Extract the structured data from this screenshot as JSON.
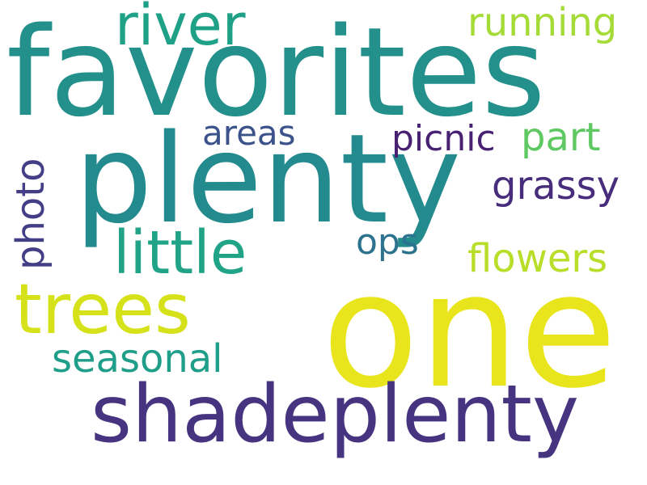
{
  "background": "#ffffff",
  "words": [
    {
      "id": "favorites",
      "text": "favorites",
      "color": "#23908c"
    },
    {
      "id": "plenty",
      "text": "plenty",
      "color": "#238a8d"
    },
    {
      "id": "one",
      "text": "one",
      "color": "#e9e51c"
    },
    {
      "id": "shadeplenty",
      "text": "shadeplenty",
      "color": "#463480"
    },
    {
      "id": "trees",
      "text": "trees",
      "color": "#d5e21a"
    },
    {
      "id": "little",
      "text": "little",
      "color": "#20a386"
    },
    {
      "id": "river",
      "text": "river",
      "color": "#1fa187"
    },
    {
      "id": "running",
      "text": "running",
      "color": "#a5db36"
    },
    {
      "id": "flowers",
      "text": "flowers",
      "color": "#b8de29"
    },
    {
      "id": "seasonal",
      "text": "seasonal",
      "color": "#1f9e89"
    },
    {
      "id": "grassy",
      "text": "grassy",
      "color": "#472d7b"
    },
    {
      "id": "part",
      "text": "part",
      "color": "#5ec962"
    },
    {
      "id": "picnic",
      "text": "picnic",
      "color": "#482173"
    },
    {
      "id": "ops",
      "text": "ops",
      "color": "#2c728e"
    },
    {
      "id": "areas",
      "text": "areas",
      "color": "#3b528b"
    },
    {
      "id": "photo",
      "text": "photo",
      "color": "#433e85"
    }
  ]
}
